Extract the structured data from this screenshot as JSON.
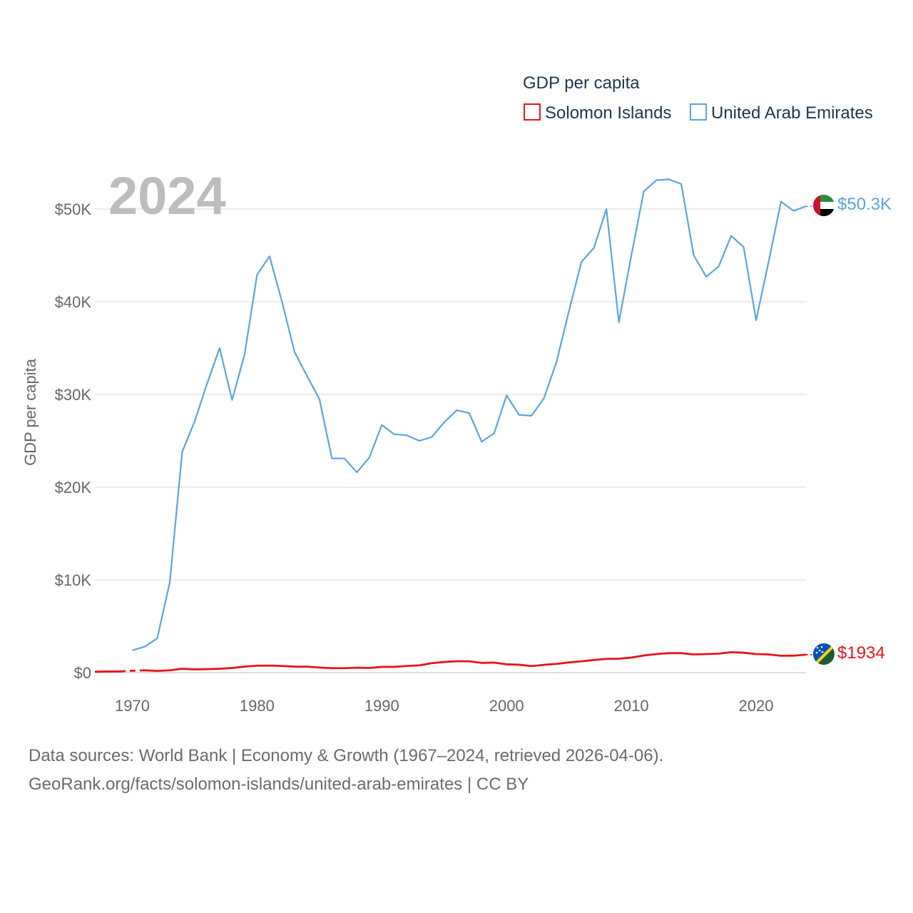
{
  "chart_data": {
    "type": "line",
    "year_label": "2024",
    "ylabel": "GDP per capita",
    "xlabel": "",
    "xlim": [
      1967,
      2024
    ],
    "ylim": [
      0,
      50000
    ],
    "x_ticks": [
      1970,
      1980,
      1990,
      2000,
      2010,
      2020
    ],
    "x_tick_labels": [
      "1970",
      "1980",
      "1990",
      "2000",
      "2010",
      "2020"
    ],
    "y_ticks": [
      0,
      10000,
      20000,
      30000,
      40000,
      50000
    ],
    "y_tick_labels": [
      "$0",
      "$10K",
      "$20K",
      "$30K",
      "$40K",
      "$50K"
    ],
    "legend": {
      "title": "GDP per capita",
      "position": "top-right",
      "entries": [
        "Solomon Islands",
        "United Arab Emirates"
      ]
    },
    "series": [
      {
        "name": "Solomon Islands",
        "color": "#e8141a",
        "end_label": "$1934",
        "flag": "solomon-islands-flag-icon",
        "dashed_segment": [
          1969,
          1971
        ],
        "x": [
          1967,
          1968,
          1969,
          1970,
          1971,
          1972,
          1973,
          1974,
          1975,
          1976,
          1977,
          1978,
          1979,
          1980,
          1981,
          1982,
          1983,
          1984,
          1985,
          1986,
          1987,
          1988,
          1989,
          1990,
          1991,
          1992,
          1993,
          1994,
          1995,
          1996,
          1997,
          1998,
          1999,
          2000,
          2001,
          2002,
          2003,
          2004,
          2005,
          2006,
          2007,
          2008,
          2009,
          2010,
          2011,
          2012,
          2013,
          2014,
          2015,
          2016,
          2017,
          2018,
          2019,
          2020,
          2021,
          2022,
          2023,
          2024
        ],
        "values": [
          100,
          120,
          130,
          200,
          250,
          180,
          250,
          420,
          350,
          380,
          420,
          500,
          650,
          750,
          760,
          720,
          650,
          640,
          550,
          480,
          480,
          530,
          500,
          620,
          620,
          720,
          780,
          1020,
          1150,
          1230,
          1220,
          1050,
          1080,
          900,
          850,
          700,
          840,
          940,
          1100,
          1220,
          1360,
          1480,
          1500,
          1620,
          1850,
          2000,
          2100,
          2100,
          1960,
          2000,
          2050,
          2200,
          2150,
          2000,
          1960,
          1820,
          1830,
          1934
        ]
      },
      {
        "name": "United Arab Emirates",
        "color": "#5ca3e6",
        "end_label": "$50.3K",
        "flag": "uae-flag-icon",
        "x": [
          1970,
          1971,
          1972,
          1973,
          1974,
          1975,
          1976,
          1977,
          1978,
          1979,
          1980,
          1981,
          1982,
          1983,
          1984,
          1985,
          1986,
          1987,
          1988,
          1989,
          1990,
          1991,
          1992,
          1993,
          1994,
          1995,
          1996,
          1997,
          1998,
          1999,
          2000,
          2001,
          2002,
          2003,
          2004,
          2005,
          2006,
          2007,
          2008,
          2009,
          2010,
          2011,
          2012,
          2013,
          2014,
          2015,
          2016,
          2017,
          2018,
          2019,
          2020,
          2021,
          2022,
          2023,
          2024
        ],
        "values": [
          2400,
          2800,
          3700,
          9700,
          23800,
          27100,
          31200,
          35000,
          29400,
          34300,
          42900,
          44900,
          40000,
          34600,
          32000,
          29500,
          23100,
          23100,
          21600,
          23200,
          26700,
          25700,
          25600,
          25000,
          25400,
          27000,
          28300,
          28000,
          24900,
          25800,
          29900,
          27800,
          27700,
          29600,
          33500,
          39000,
          44300,
          45800,
          50000,
          37800,
          45000,
          51900,
          53100,
          53200,
          52700,
          45000,
          42700,
          43800,
          47100,
          45900,
          38000,
          44300,
          50800,
          49800,
          50300
        ]
      }
    ]
  },
  "footer": {
    "line1": "Data sources: World Bank | Economy & Growth (1967–2024, retrieved 2026-04-06).",
    "line2": "GeoRank.org/facts/solomon-islands/united-arab-emirates | CC BY"
  }
}
